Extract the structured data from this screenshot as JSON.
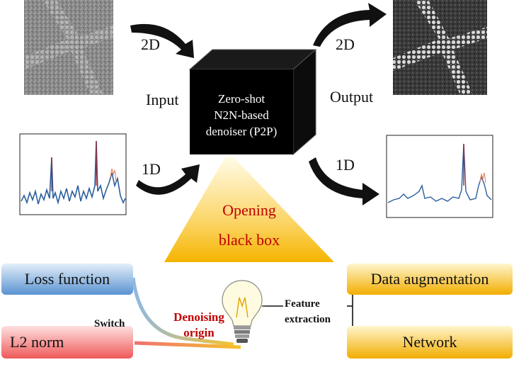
{
  "labels": {
    "input": "Input",
    "output": "Output",
    "in_2d": "2D",
    "in_1d": "1D",
    "out_2d": "2D",
    "out_1d": "1D"
  },
  "cube": {
    "line1": "Zero-shot",
    "line2": "N2N-based",
    "line3": "denoiser  (P2P)"
  },
  "spotlight": {
    "line1": "Opening",
    "line2": "black box"
  },
  "boxes": {
    "loss_function": "Loss function",
    "l2_norm": "L2 norm",
    "data_augmentation": "Data augmentation",
    "network": "Network"
  },
  "switch_label": "Switch",
  "denoising": {
    "line1": "Denoising",
    "line2": "origin"
  },
  "feature": {
    "line1": "Feature",
    "line2": "extraction"
  },
  "colors": {
    "accent_red": "#c00000",
    "gold": "#f2b705",
    "blue": "#4a86c8",
    "red_box": "#f06060"
  },
  "icons": [
    "curved-arrow-icon",
    "lightbulb-icon",
    "toggle-switch-icon"
  ]
}
